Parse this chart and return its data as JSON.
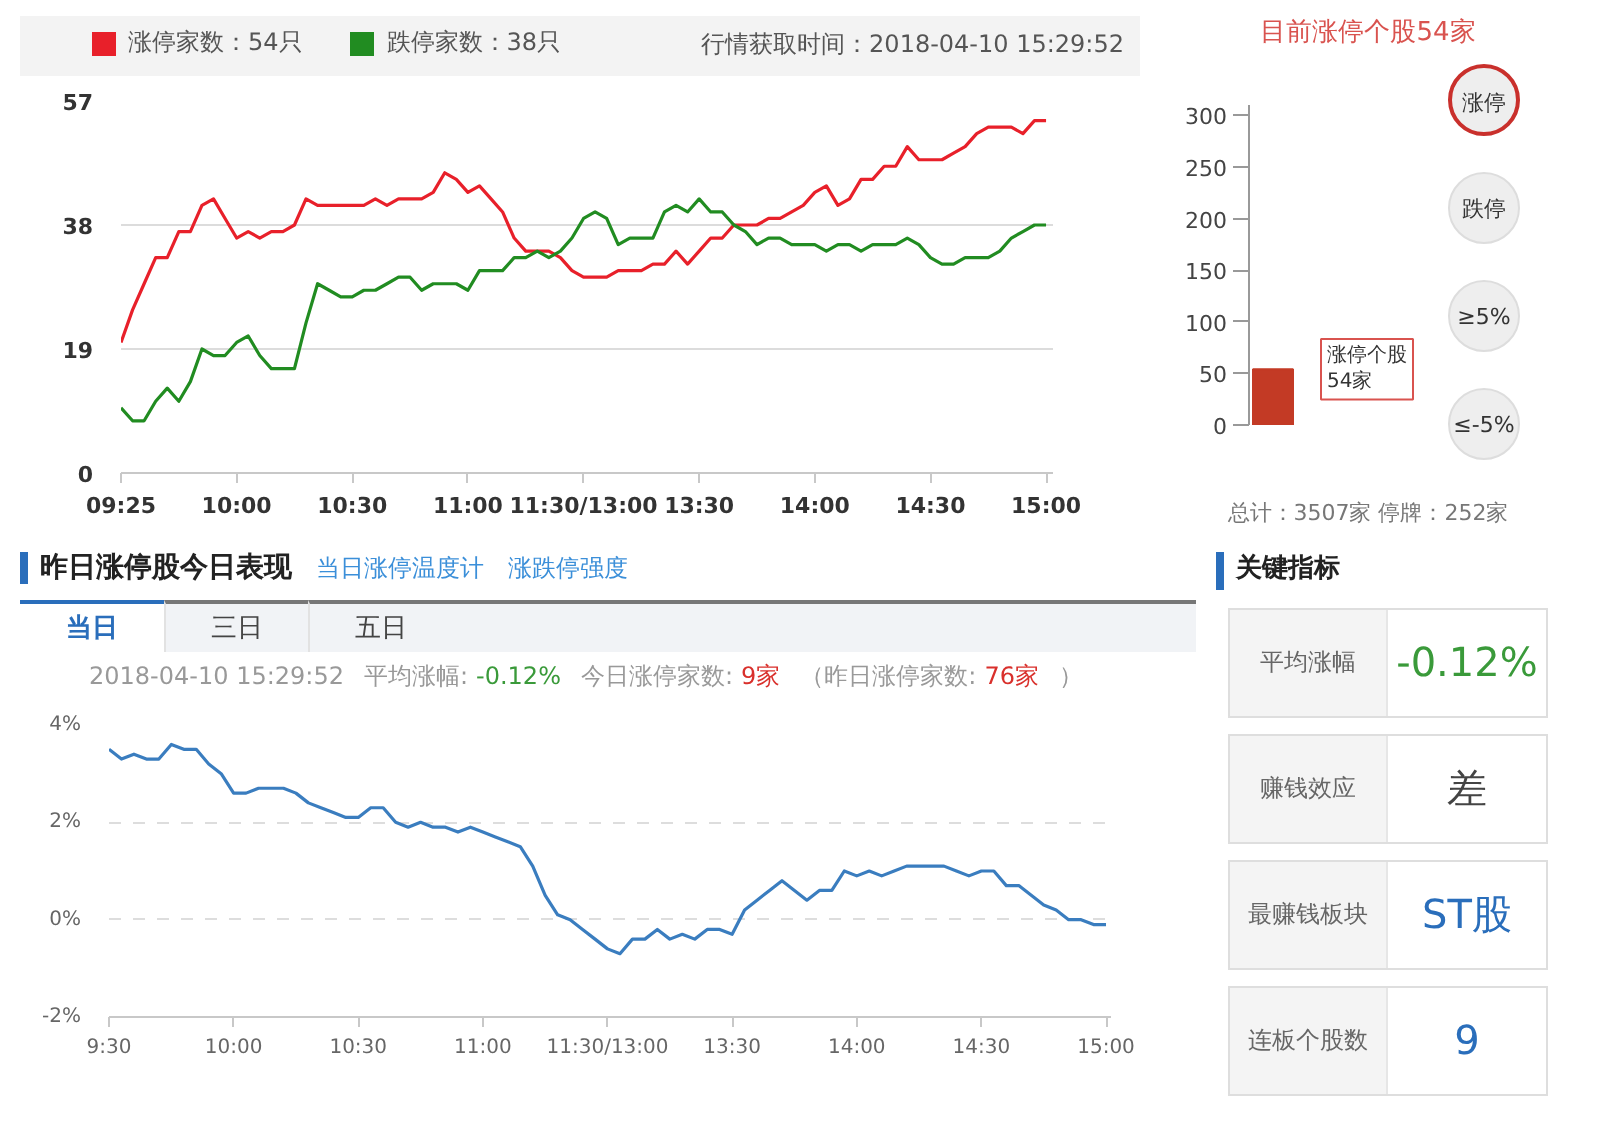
{
  "chart_data": [
    {
      "type": "line",
      "categories": [
        "09:25",
        null,
        null,
        null,
        null,
        null,
        null,
        null,
        null,
        null,
        "10:00",
        null,
        null,
        null,
        null,
        null,
        null,
        null,
        null,
        null,
        "10:30",
        null,
        null,
        null,
        null,
        null,
        null,
        null,
        null,
        null,
        "11:00",
        null,
        null,
        null,
        null,
        null,
        null,
        null,
        null,
        null,
        "11:30/13:00",
        null,
        null,
        null,
        null,
        null,
        null,
        null,
        null,
        null,
        "13:30",
        null,
        null,
        null,
        null,
        null,
        null,
        null,
        null,
        null,
        "14:00",
        null,
        null,
        null,
        null,
        null,
        null,
        null,
        null,
        null,
        "14:30",
        null,
        null,
        null,
        null,
        null,
        null,
        null,
        null,
        null,
        "15:00"
      ],
      "series": [
        {
          "name": "涨停家数：54只",
          "color": "#e8202a",
          "values": [
            20,
            25,
            29,
            33,
            33,
            37,
            37,
            41,
            42,
            39,
            36,
            37,
            36,
            37,
            37,
            38,
            42,
            41,
            41,
            41,
            41,
            41,
            42,
            41,
            42,
            42,
            42,
            43,
            46,
            45,
            43,
            44,
            42,
            40,
            36,
            34,
            34,
            34,
            33,
            31,
            30,
            30,
            30,
            31,
            31,
            31,
            32,
            32,
            34,
            32,
            34,
            36,
            36,
            38,
            38,
            38,
            39,
            39,
            40,
            41,
            43,
            44,
            41,
            42,
            45,
            45,
            47,
            47,
            50,
            48,
            48,
            48,
            49,
            50,
            52,
            53,
            53,
            53,
            52,
            54,
            54
          ]
        },
        {
          "name": "跌停家数：38只",
          "color": "#218c21",
          "values": [
            10,
            8,
            8,
            11,
            13,
            11,
            14,
            19,
            18,
            18,
            20,
            21,
            18,
            16,
            16,
            16,
            23,
            29,
            28,
            27,
            27,
            28,
            28,
            29,
            30,
            30,
            28,
            29,
            29,
            29,
            28,
            31,
            31,
            31,
            33,
            33,
            34,
            33,
            34,
            36,
            39,
            40,
            39,
            35,
            36,
            36,
            36,
            40,
            41,
            40,
            42,
            40,
            40,
            38,
            37,
            35,
            36,
            36,
            35,
            35,
            35,
            34,
            35,
            35,
            34,
            35,
            35,
            35,
            36,
            35,
            33,
            32,
            32,
            33,
            33,
            33,
            34,
            36,
            37,
            38,
            38
          ]
        }
      ],
      "ylim": [
        0,
        57
      ],
      "yticks": [
        0,
        19,
        38,
        57
      ],
      "grid": "y",
      "legend": "top",
      "annotations": [
        "行情获取时间：2018-04-10 15:29:52"
      ]
    },
    {
      "type": "bar",
      "title": "目前涨停个股54家",
      "categories": [
        null
      ],
      "values": [
        54
      ],
      "color": "#c33a25",
      "ylim": [
        0,
        310
      ],
      "yticks": [
        0,
        50,
        100,
        150,
        200,
        250,
        300
      ],
      "annotations": [
        "涨停个股\n54家",
        "涨停",
        "跌停",
        "≥5%",
        "≤-5%",
        "总计：3507家 停牌：252家"
      ]
    },
    {
      "type": "line",
      "title": "昨日涨停股今日表现",
      "color": "#3a7dbf",
      "categories": [
        "9:30",
        null,
        null,
        null,
        null,
        null,
        null,
        null,
        null,
        null,
        "10:00",
        null,
        null,
        null,
        null,
        null,
        null,
        null,
        null,
        null,
        "10:30",
        null,
        null,
        null,
        null,
        null,
        null,
        null,
        null,
        null,
        "11:00",
        null,
        null,
        null,
        null,
        null,
        null,
        null,
        null,
        null,
        "11:30/13:00",
        null,
        null,
        null,
        null,
        null,
        null,
        null,
        null,
        null,
        "13:30",
        null,
        null,
        null,
        null,
        null,
        null,
        null,
        null,
        null,
        "14:00",
        null,
        null,
        null,
        null,
        null,
        null,
        null,
        null,
        null,
        "14:30",
        null,
        null,
        null,
        null,
        null,
        null,
        null,
        null,
        null,
        "15:00"
      ],
      "values": [
        3.5,
        3.3,
        3.4,
        3.3,
        3.3,
        3.6,
        3.5,
        3.5,
        3.2,
        3.0,
        2.6,
        2.6,
        2.7,
        2.7,
        2.7,
        2.6,
        2.4,
        2.3,
        2.2,
        2.1,
        2.1,
        2.3,
        2.3,
        2.0,
        1.9,
        2.0,
        1.9,
        1.9,
        1.8,
        1.9,
        1.8,
        1.7,
        1.6,
        1.5,
        1.1,
        0.5,
        0.1,
        0.0,
        -0.2,
        -0.4,
        -0.6,
        -0.7,
        -0.4,
        -0.4,
        -0.2,
        -0.4,
        -0.3,
        -0.4,
        -0.2,
        -0.2,
        -0.3,
        0.2,
        0.4,
        0.6,
        0.8,
        0.6,
        0.4,
        0.6,
        0.6,
        1.0,
        0.9,
        1.0,
        0.9,
        1.0,
        1.1,
        1.1,
        1.1,
        1.1,
        1.0,
        0.9,
        1.0,
        1.0,
        0.7,
        0.7,
        0.5,
        0.3,
        0.2,
        0.0,
        0.0,
        -0.1,
        -0.1
      ],
      "ylim": [
        -2,
        4
      ],
      "yticks": [
        {
          "value": -2,
          "label": "-2%"
        },
        {
          "value": 0,
          "label": "0%"
        },
        {
          "value": 2,
          "label": "2%"
        },
        {
          "value": 4,
          "label": "4%"
        }
      ],
      "grid": "y",
      "annotations": [
        "当日涨停温度计",
        "涨跌停强度",
        "当日",
        "三日",
        "五日",
        "2018-04-10 15:29:52",
        "平均涨幅:",
        "-0.12%",
        "今日涨停家数:",
        "9家",
        "（昨日涨停家数:",
        "76家",
        "）"
      ]
    },
    {
      "type": "other",
      "title": "关键指标",
      "annotations": [
        "平均涨幅",
        "-0.12%",
        "赚钱效应",
        "差",
        "最赚钱板块",
        "ST股",
        "连板个股数",
        "9"
      ]
    }
  ]
}
